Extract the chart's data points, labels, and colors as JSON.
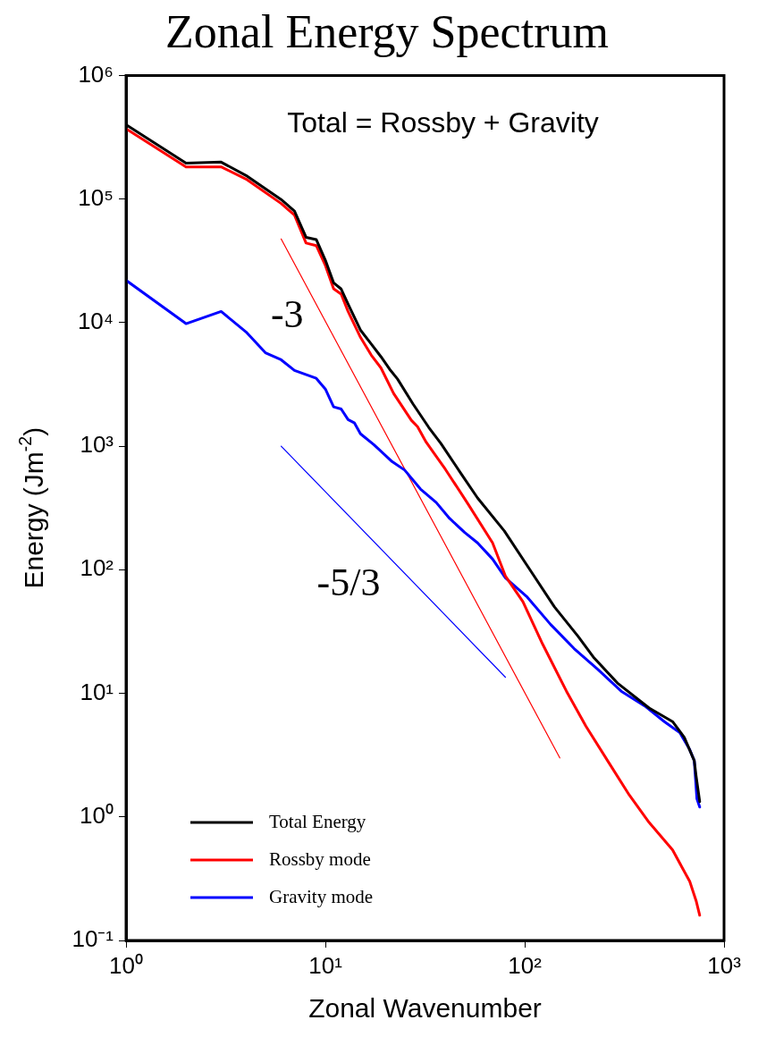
{
  "chart_data": {
    "type": "line",
    "title": "Zonal Energy Spectrum",
    "xlabel": "Zonal Wavenumber",
    "ylabel": "Energy (Jm$^{-2}$)",
    "log": "xy",
    "xlim": [
      1,
      1000
    ],
    "ylim": [
      0.1,
      1000000
    ],
    "xticks": [
      {
        "value": 1,
        "label": "10⁰"
      },
      {
        "value": 10,
        "label": "10¹"
      },
      {
        "value": 100,
        "label": "10²"
      },
      {
        "value": 1000,
        "label": "10³"
      }
    ],
    "yticks": [
      {
        "value": 0.1,
        "label": "10⁻¹"
      },
      {
        "value": 1,
        "label": "10⁰"
      },
      {
        "value": 10,
        "label": "10¹"
      },
      {
        "value": 100,
        "label": "10²"
      },
      {
        "value": 1000,
        "label": "10³"
      },
      {
        "value": 10000,
        "label": "10⁴"
      },
      {
        "value": 100000,
        "label": "10⁵"
      },
      {
        "value": 1000000,
        "label": "10⁶"
      }
    ],
    "grid": false,
    "legend": "bottom left",
    "marker": "none",
    "line_style": "solid",
    "annotations": [
      "Total = Rossby + Gravity",
      "-3",
      "-5/3"
    ],
    "series": [
      {
        "name": "Total Energy",
        "color": "#000000",
        "x": [
          1,
          2,
          3,
          4,
          6,
          7,
          8,
          9,
          10,
          11,
          12,
          13,
          15,
          17,
          19,
          21,
          23,
          27.5,
          33,
          38,
          47.7,
          58,
          79,
          108,
          141,
          185,
          223,
          292,
          421,
          552,
          632,
          709,
          724,
          755
        ],
        "values": [
          400000,
          195000,
          199000,
          155000,
          99000,
          80000,
          49000,
          47000,
          32000,
          21000,
          18700,
          14100,
          8700,
          6700,
          5300,
          4200,
          3500,
          2200,
          1420,
          1050,
          607,
          381,
          206,
          96,
          50,
          29,
          19.3,
          12.1,
          7.6,
          5.9,
          4.4,
          2.85,
          2.15,
          1.33
        ]
      },
      {
        "name": "Rossby mode",
        "color": "#ff0000",
        "x": [
          1,
          2,
          3,
          4,
          6,
          7,
          8,
          9,
          10,
          11,
          12,
          13,
          15,
          17,
          19,
          22,
          27,
          29,
          32,
          40,
          52,
          69,
          80,
          98,
          123,
          162,
          203,
          266,
          335,
          421,
          552,
          673,
          724,
          755
        ],
        "values": [
          370000,
          182000,
          182000,
          145000,
          92000,
          74000,
          44000,
          42000,
          29000,
          18800,
          17000,
          12300,
          7600,
          5450,
          4300,
          2670,
          1620,
          1440,
          1080,
          650,
          340,
          165,
          89,
          55,
          25,
          10.4,
          5.4,
          2.7,
          1.5,
          0.9,
          0.54,
          0.3,
          0.21,
          0.16
        ]
      },
      {
        "name": "Gravity mode",
        "color": "#0000ff",
        "x": [
          1,
          2,
          3,
          4,
          5,
          6,
          7,
          9,
          10,
          11,
          12,
          13,
          14,
          15,
          17.5,
          21.6,
          25,
          30,
          36,
          42,
          50,
          58,
          69,
          80,
          103,
          135,
          177,
          233,
          305,
          400,
          502,
          600,
          673,
          709,
          731,
          755
        ],
        "values": [
          22000,
          9800,
          12300,
          8400,
          5700,
          5000,
          4100,
          3540,
          2900,
          2080,
          2000,
          1640,
          1540,
          1260,
          1030,
          750,
          640,
          450,
          350,
          260,
          200,
          165,
          122,
          86,
          60,
          36,
          23,
          15.6,
          10.4,
          7.9,
          5.9,
          4.8,
          3.5,
          2.85,
          1.4,
          1.2
        ]
      },
      {
        "type": "line",
        "color": "#ff0000",
        "x": [
          6,
          150
        ],
        "values": [
          47500,
          3
        ]
      },
      {
        "type": "line",
        "color": "#0000ff",
        "x": [
          6,
          80
        ],
        "values": [
          1000,
          13.5
        ]
      }
    ]
  }
}
